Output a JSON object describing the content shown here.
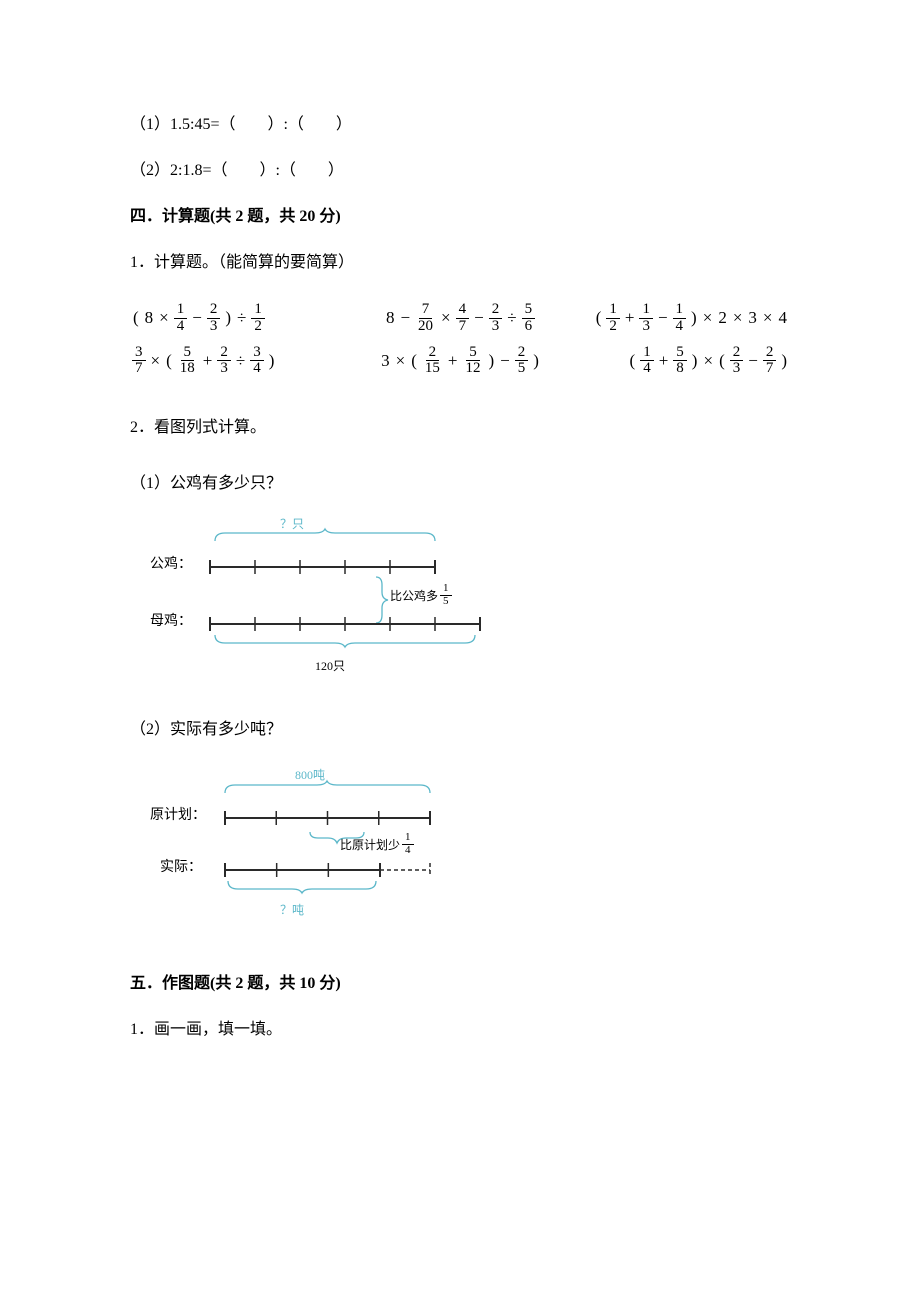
{
  "colors": {
    "text": "#000000",
    "diagram_stroke": "#5bb7c9",
    "diagram_fill": "#ffffff",
    "diagram_bar": "#2a2a2a"
  },
  "q_blanks": {
    "item1": "（1）1.5:45=（　　）:（　　）",
    "item2": "（2）2:1.8=（　　）:（　　）"
  },
  "section4": {
    "heading": "四．计算题(共 2 题，共 20 分)",
    "q1_intro": "1．计算题。（能简算的要简算）",
    "formulas": {
      "r1c1": {
        "parts": [
          "(",
          "8",
          "×",
          {
            "n": "1",
            "d": "4"
          },
          "−",
          {
            "n": "2",
            "d": "3"
          },
          ")",
          "÷",
          {
            "n": "1",
            "d": "2"
          }
        ]
      },
      "r1c2": {
        "parts": [
          "8",
          "−",
          {
            "n": "7",
            "d": "20"
          },
          "×",
          {
            "n": "4",
            "d": "7"
          },
          "−",
          {
            "n": "2",
            "d": "3"
          },
          "÷",
          {
            "n": "5",
            "d": "6"
          }
        ]
      },
      "r1c3": {
        "parts": [
          "(",
          {
            "n": "1",
            "d": "2"
          },
          "+",
          {
            "n": "1",
            "d": "3"
          },
          "−",
          {
            "n": "1",
            "d": "4"
          },
          ")",
          "×",
          "2",
          "×",
          "3",
          "×",
          "4"
        ]
      },
      "r2c1": {
        "parts": [
          {
            "n": "3",
            "d": "7"
          },
          "×",
          "(",
          {
            "n": "5",
            "d": "18"
          },
          "+",
          {
            "n": "2",
            "d": "3"
          },
          "÷",
          {
            "n": "3",
            "d": "4"
          },
          ")"
        ]
      },
      "r2c2": {
        "parts": [
          "3",
          "×",
          "(",
          {
            "n": "2",
            "d": "15"
          },
          "+",
          {
            "n": "5",
            "d": "12"
          },
          ")",
          "−",
          {
            "n": "2",
            "d": "5"
          },
          ")"
        ]
      },
      "r2c3": {
        "parts": [
          "(",
          {
            "n": "1",
            "d": "4"
          },
          "+",
          {
            "n": "5",
            "d": "8"
          },
          ")",
          "×",
          "(",
          {
            "n": "2",
            "d": "3"
          },
          "−",
          {
            "n": "2",
            "d": "7"
          },
          ")"
        ]
      }
    },
    "q2_intro": "2．看图列式计算。",
    "q2_sub1": "（1）公鸡有多少只？",
    "q2_sub2": "（2）实际有多少吨？"
  },
  "diagram1": {
    "top_question": "？只",
    "label_gongji": "公鸡：",
    "label_muji": "母鸡：",
    "side_text": "比公鸡多",
    "side_frac": {
      "n": "1",
      "d": "5"
    },
    "bar1_ticks": 5,
    "bar2_ticks": 6,
    "bottom_label": "120只"
  },
  "diagram2": {
    "top_label": "800吨",
    "label_plan": "原计划：",
    "label_actual": "实际：",
    "side_text": "比原计划少",
    "side_frac": {
      "n": "1",
      "d": "4"
    },
    "bar1_ticks": 4,
    "bar2_ticks": 3,
    "bottom_label": "？吨"
  },
  "section5": {
    "heading": "五．作图题(共 2 题，共 10 分)",
    "q1": "1．画一画，填一填。"
  }
}
